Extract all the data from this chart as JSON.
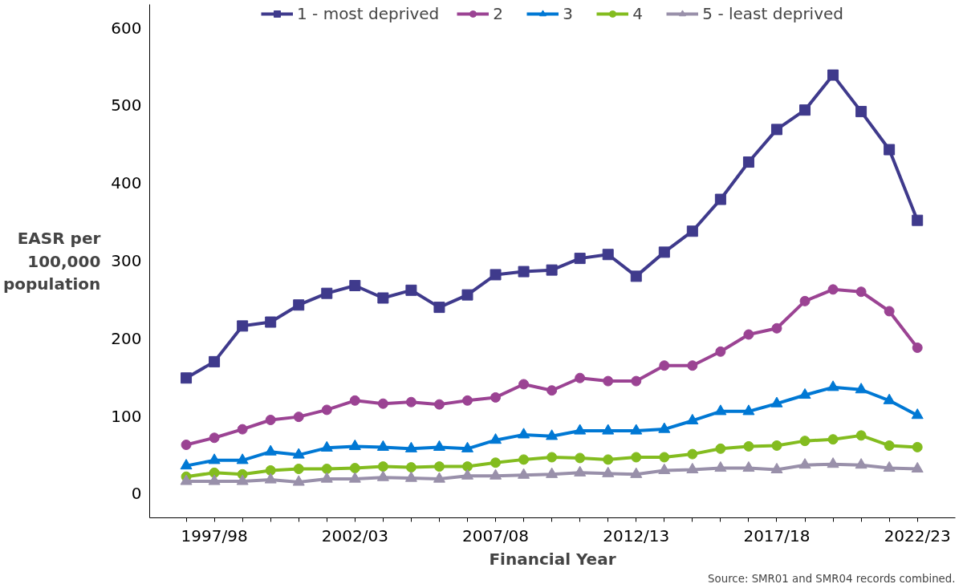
{
  "chart_data": {
    "type": "line",
    "xlabel": "Financial Year",
    "ylabel": "EASR per\n100,000\npopulation",
    "annotations": [
      "Source: SMR01 and SMR04 records combined."
    ],
    "categories": [
      null,
      "1997/98",
      null,
      null,
      null,
      null,
      "2002/03",
      null,
      null,
      null,
      null,
      "2007/08",
      null,
      null,
      null,
      null,
      "2012/13",
      null,
      null,
      null,
      null,
      "2017/18",
      null,
      null,
      null,
      null,
      "2022/23"
    ],
    "ylim": [
      -31,
      630
    ],
    "yticks": [
      0,
      100,
      200,
      300,
      400,
      500,
      600
    ],
    "grid": false,
    "legend": "top",
    "line_style": "solid",
    "series": [
      {
        "name": "1 - most deprived",
        "color": "#3f3a8c",
        "marker": "square",
        "values": [
          149,
          170,
          216,
          221,
          243,
          258,
          268,
          252,
          262,
          240,
          256,
          282,
          286,
          288,
          303,
          308,
          280,
          311,
          338,
          379,
          427,
          469,
          494,
          539,
          492,
          443,
          352
        ]
      },
      {
        "name": "2",
        "color": "#9b4393",
        "marker": "circle",
        "values": [
          63,
          72,
          83,
          95,
          99,
          108,
          120,
          116,
          118,
          115,
          120,
          124,
          141,
          133,
          149,
          145,
          145,
          165,
          165,
          183,
          205,
          213,
          248,
          263,
          260,
          235,
          188
        ]
      },
      {
        "name": "3",
        "color": "#0078d4",
        "marker": "triangle",
        "values": [
          36,
          43,
          43,
          54,
          50,
          59,
          61,
          60,
          58,
          60,
          58,
          69,
          76,
          74,
          81,
          81,
          81,
          83,
          94,
          106,
          106,
          116,
          127,
          137,
          134,
          120,
          101
        ]
      },
      {
        "name": "4",
        "color": "#83bc1f",
        "marker": "circle",
        "values": [
          22,
          27,
          25,
          30,
          32,
          32,
          33,
          35,
          34,
          35,
          35,
          40,
          44,
          47,
          46,
          44,
          47,
          47,
          51,
          58,
          61,
          62,
          68,
          70,
          75,
          62,
          60
        ]
      },
      {
        "name": "5 - least deprived",
        "color": "#9990aa",
        "marker": "triangle",
        "values": [
          16,
          16,
          16,
          18,
          15,
          19,
          19,
          21,
          20,
          19,
          23,
          23,
          24,
          25,
          27,
          26,
          25,
          30,
          31,
          33,
          33,
          31,
          37,
          38,
          37,
          33,
          32
        ]
      }
    ]
  }
}
